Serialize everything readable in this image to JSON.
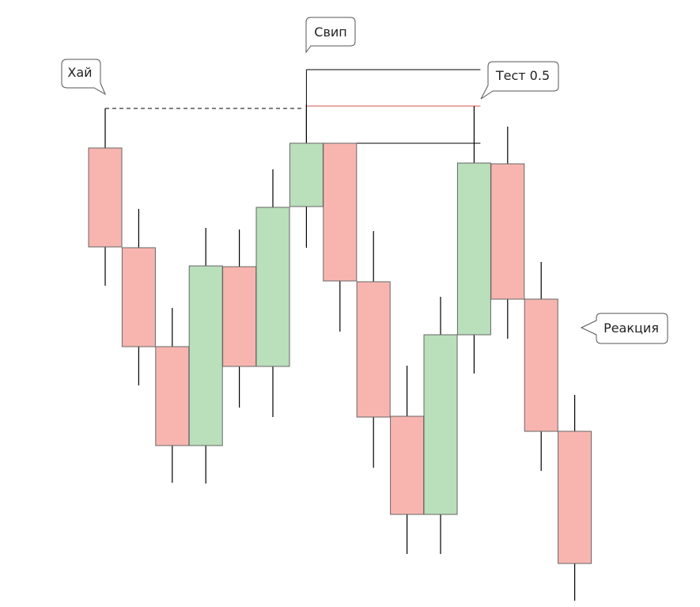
{
  "colors": {
    "bull_fill": "#b9dfbb",
    "bear_fill": "#f8b5b0",
    "candle_stroke": "#666666",
    "wick": "#000000",
    "guide_line": "#000000",
    "level_line": "#d9534f",
    "callout_stroke": "#555555"
  },
  "callouts": {
    "high": "Хай",
    "sweep": "Свип",
    "test": "Тест 0.5",
    "reaction": "Реакция"
  },
  "chart_data": {
    "type": "candlestick",
    "candles": [
      {
        "dir": "bear",
        "open": 580,
        "close": 455,
        "high": 630,
        "low": 406
      },
      {
        "dir": "bear",
        "open": 454,
        "close": 329,
        "high": 503,
        "low": 280
      },
      {
        "dir": "bear",
        "open": 329,
        "close": 204,
        "high": 378,
        "low": 157
      },
      {
        "dir": "bull",
        "open": 204,
        "close": 431,
        "high": 479,
        "low": 156
      },
      {
        "dir": "bear",
        "open": 430,
        "close": 304,
        "high": 477,
        "low": 252
      },
      {
        "dir": "bull",
        "open": 304,
        "close": 505,
        "high": 553,
        "low": 240
      },
      {
        "dir": "bull",
        "open": 506,
        "close": 586,
        "high": 635,
        "low": 454
      },
      {
        "dir": "bear",
        "open": 586,
        "close": 412,
        "high": 586,
        "low": 348
      },
      {
        "dir": "bear",
        "open": 411,
        "close": 240,
        "high": 475,
        "low": 176
      },
      {
        "dir": "bear",
        "open": 241,
        "close": 117,
        "high": 305,
        "low": 67
      },
      {
        "dir": "bull",
        "open": 117,
        "close": 344,
        "high": 392,
        "low": 67
      },
      {
        "dir": "bull",
        "open": 344,
        "close": 561,
        "high": 633,
        "low": 295
      },
      {
        "dir": "bear",
        "open": 560,
        "close": 389,
        "high": 607,
        "low": 339
      },
      {
        "dir": "bear",
        "open": 389,
        "close": 222,
        "high": 436,
        "low": 172
      },
      {
        "dir": "bear",
        "open": 222,
        "close": 55,
        "high": 268,
        "low": 8
      }
    ],
    "levels": {
      "high": 630,
      "sweep_high": 679,
      "sweep_body_top": 586,
      "fifty_percent": 633
    },
    "ylim": [
      0,
      767
    ]
  }
}
